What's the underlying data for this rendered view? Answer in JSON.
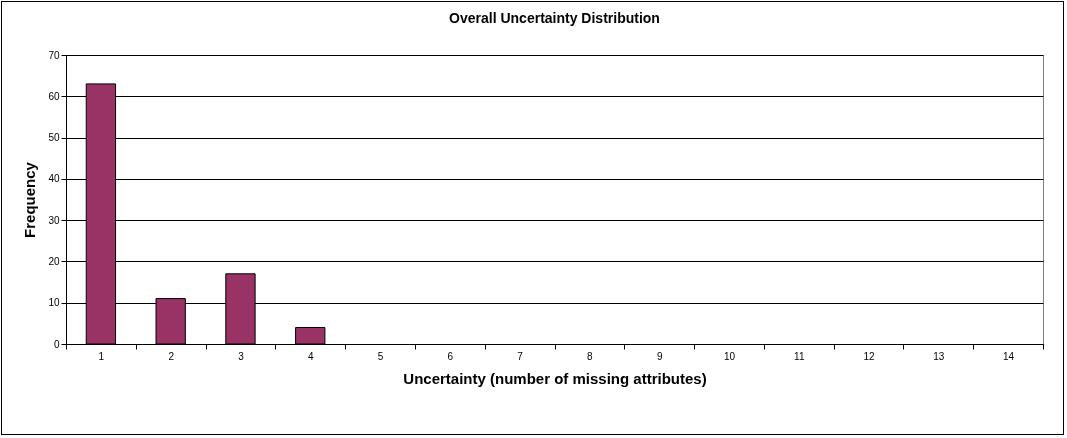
{
  "chart_data": {
    "type": "bar",
    "title": "Overall Uncertainty Distribution",
    "xlabel": "Uncertainty (number of missing attributes)",
    "ylabel": "Frequency",
    "categories": [
      "1",
      "2",
      "3",
      "4",
      "5",
      "6",
      "7",
      "8",
      "9",
      "10",
      "11",
      "12",
      "13",
      "14"
    ],
    "values": [
      63,
      11,
      17,
      4,
      0,
      0,
      0,
      0,
      0,
      0,
      0,
      0,
      0,
      0
    ],
    "color": "#993366",
    "ylim": [
      0,
      70
    ],
    "yticks": [
      0,
      10,
      20,
      30,
      40,
      50,
      60,
      70
    ],
    "grid": "y"
  }
}
